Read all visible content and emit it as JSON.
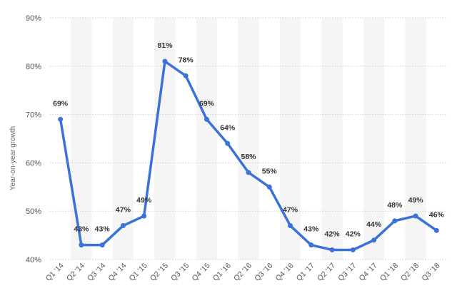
{
  "chart_data": {
    "type": "line",
    "title": "",
    "xlabel": "",
    "ylabel": "Year-on-year growth",
    "categories": [
      "Q1 '14",
      "Q2 '14",
      "Q3 '14",
      "Q4 '14",
      "Q1 '15",
      "Q2 '15",
      "Q3 '15",
      "Q4 '15",
      "Q1 '16",
      "Q2 '16",
      "Q3 '16",
      "Q4 '16",
      "Q1 '17",
      "Q2 '17",
      "Q3 '17",
      "Q4 '17",
      "Q1 '18",
      "Q2 '18",
      "Q3 '18"
    ],
    "series": [
      {
        "values": [
          69,
          43,
          43,
          47,
          49,
          81,
          78,
          69,
          64,
          58,
          55,
          47,
          43,
          42,
          42,
          44,
          48,
          49,
          46
        ],
        "labels": [
          "69%",
          "43%",
          "43%",
          "47%",
          "49%",
          "81%",
          "78%",
          "69%",
          "64%",
          "58%",
          "55%",
          "47%",
          "43%",
          "42%",
          "42%",
          "44%",
          "48%",
          "49%",
          "46%"
        ],
        "color": "#3a72d8"
      }
    ],
    "ylim": [
      40,
      90
    ],
    "y_ticks": [
      40,
      50,
      60,
      70,
      80,
      90
    ],
    "y_tick_labels": [
      "40%",
      "50%",
      "60%",
      "70%",
      "80%",
      "90%"
    ],
    "grid": true,
    "legend": "none"
  }
}
